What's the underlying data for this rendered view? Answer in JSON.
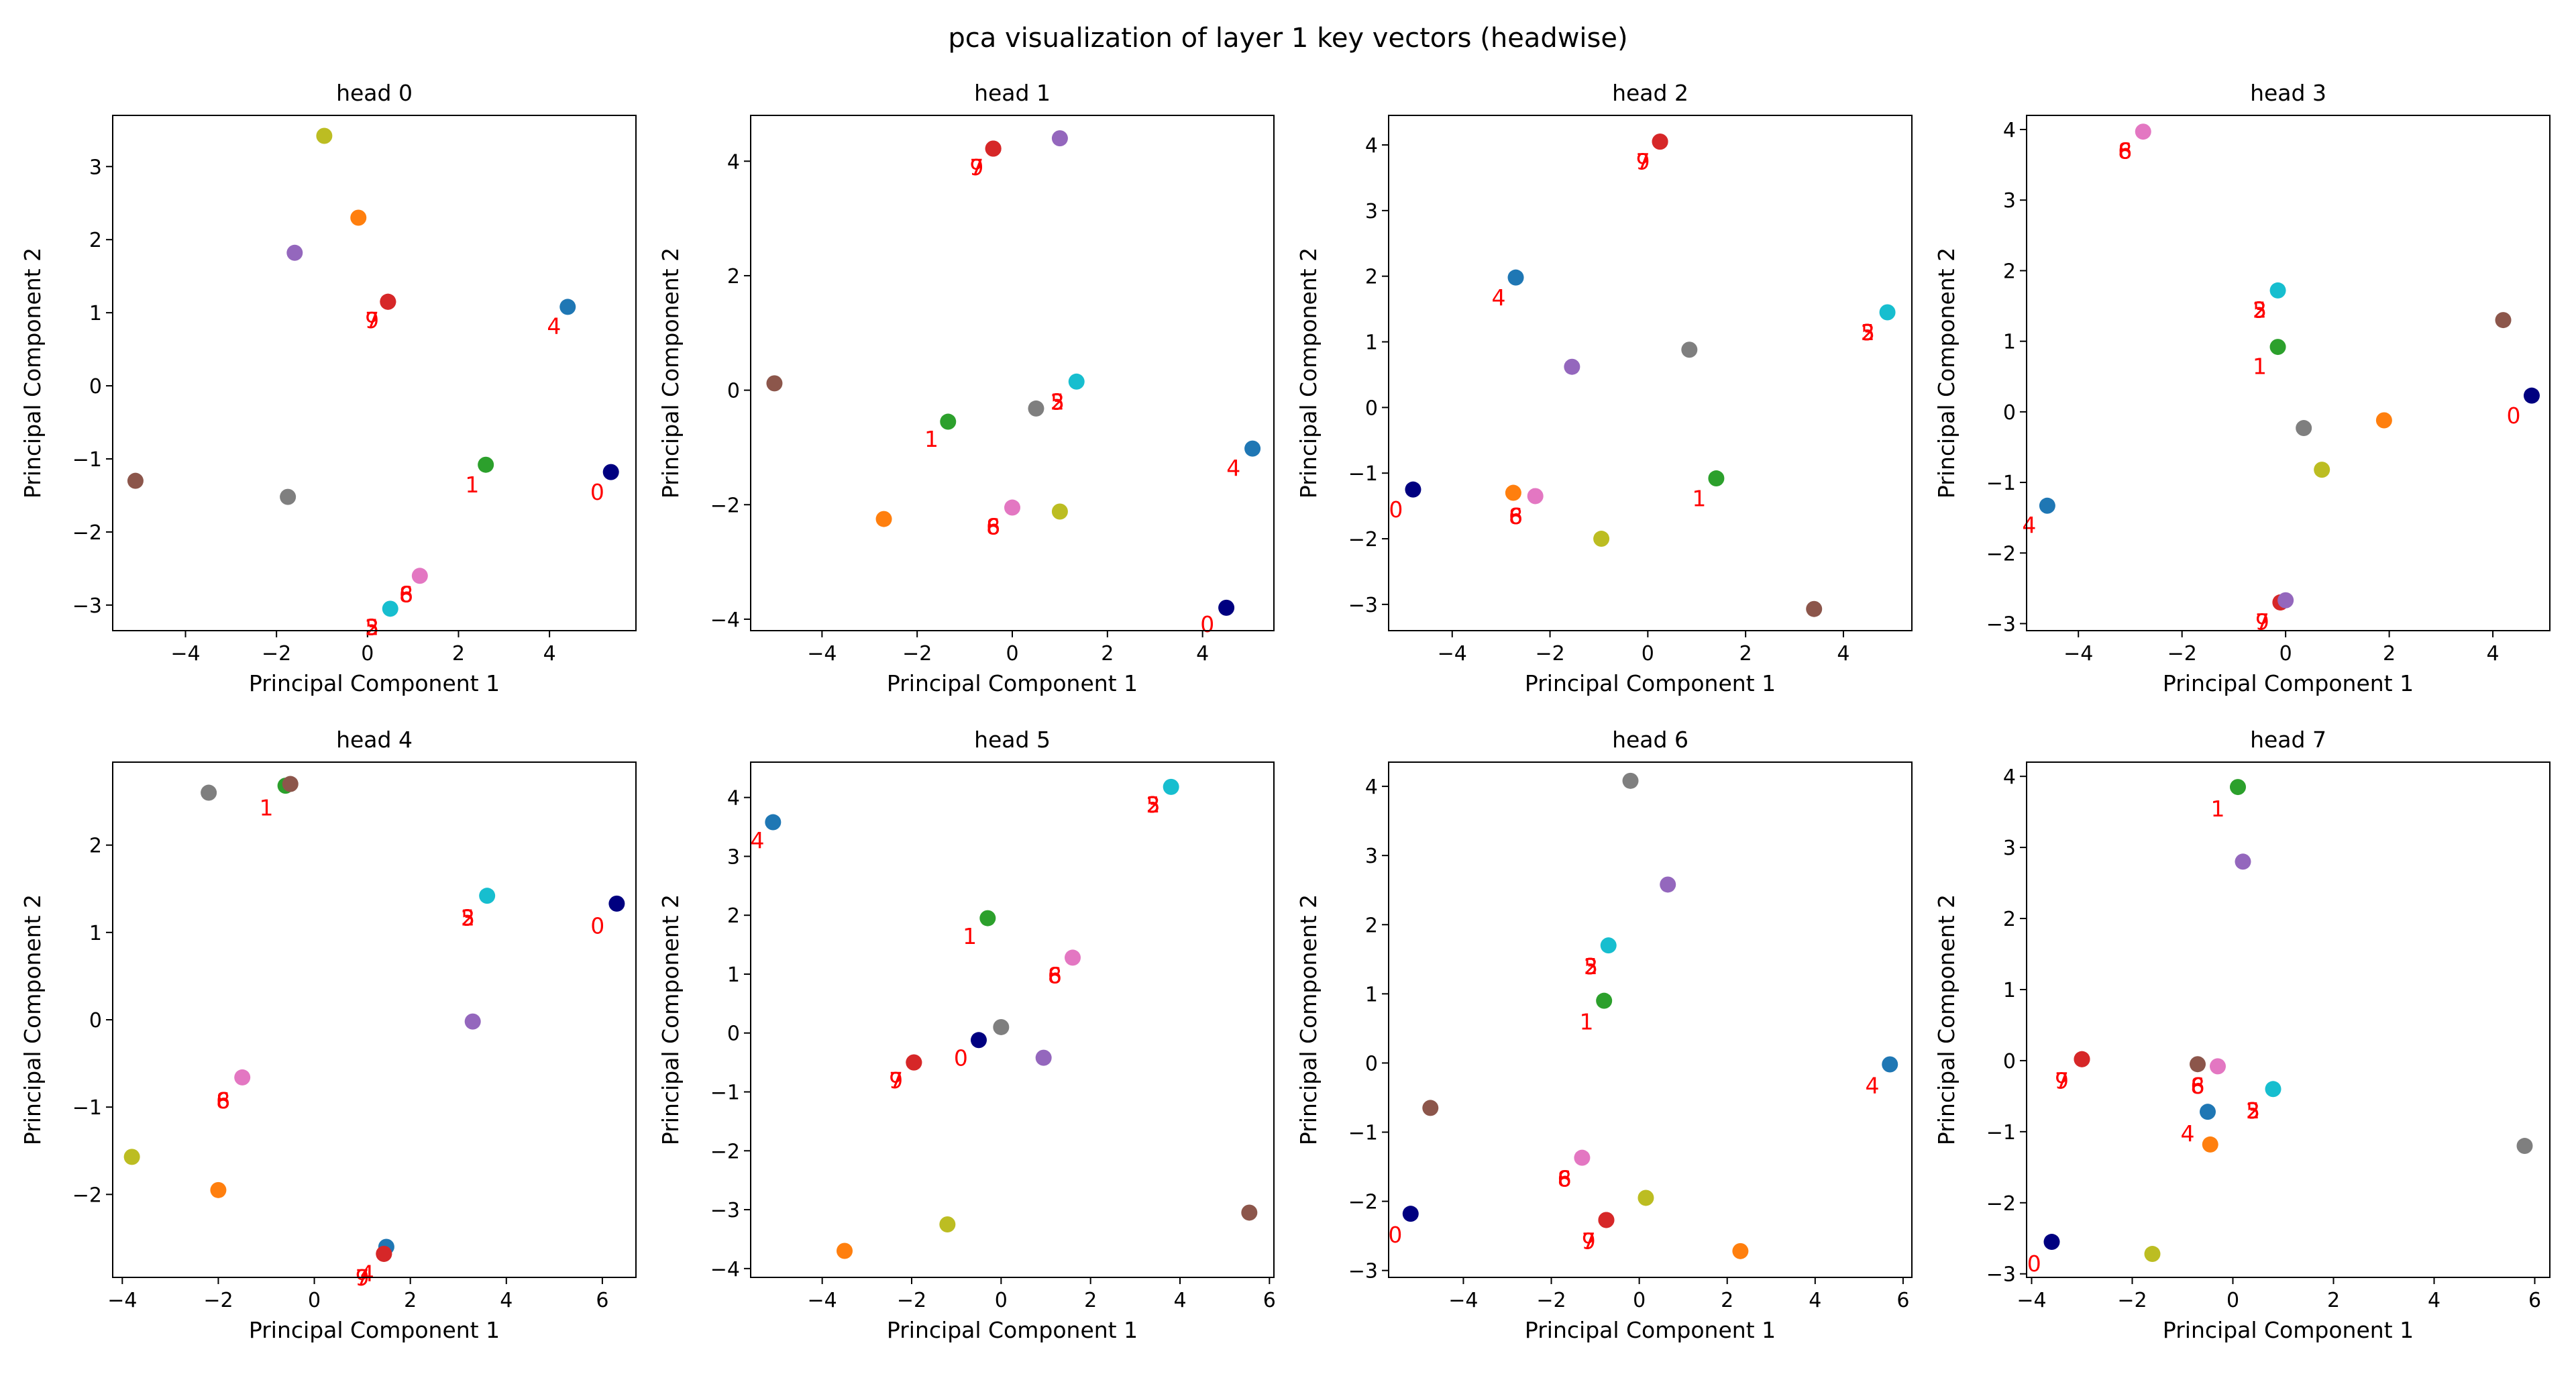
{
  "title": "pca visualization of layer 1 key vectors (headwise)",
  "colors": [
    "#000080",
    "#2ca02c",
    "#17becf",
    "#d62728",
    "#1f77b4",
    "#ff7f0e",
    "#e377c2",
    "#d62728",
    "#8c564b",
    "#9467bd",
    "#7f7f7f",
    "#bcbd22"
  ],
  "chart_data": [
    {
      "type": "scatter",
      "title": "head 0",
      "xlabel": "Principal Component 1",
      "ylabel": "Principal Component 2",
      "xlim": [
        -5.6,
        5.9
      ],
      "ylim": [
        -3.35,
        3.7
      ],
      "xticks": [
        -4,
        -2,
        0,
        2,
        4
      ],
      "yticks": [
        -3,
        -2,
        -1,
        0,
        1,
        2,
        3
      ],
      "points": [
        [
          5.35,
          -1.18
        ],
        [
          2.6,
          -1.08
        ],
        [
          0.5,
          -3.05
        ],
        [
          0.45,
          1.15
        ],
        [
          4.4,
          1.08
        ],
        [
          -0.2,
          2.3
        ],
        [
          1.15,
          -2.6
        ],
        [
          0.45,
          1.15
        ],
        [
          -5.1,
          -1.3
        ],
        [
          -1.6,
          1.82
        ],
        [
          -1.75,
          -1.52
        ],
        [
          -0.95,
          3.42
        ]
      ],
      "labels": [
        {
          "text": "0",
          "x": 5.05,
          "y": -1.45
        },
        {
          "text": "1",
          "x": 2.3,
          "y": -1.35
        },
        {
          "text": "2",
          "x": 0.1,
          "y": -3.3
        },
        {
          "text": "3",
          "x": 0.1,
          "y": -3.3
        },
        {
          "text": "4",
          "x": 4.1,
          "y": 0.82
        },
        {
          "text": "5",
          "x": 0.1,
          "y": -3.3
        },
        {
          "text": "6",
          "x": 0.85,
          "y": -2.85
        },
        {
          "text": "7",
          "x": 0.1,
          "y": 0.9
        },
        {
          "text": "8",
          "x": 0.85,
          "y": -2.85
        },
        {
          "text": "9",
          "x": 0.1,
          "y": 0.9
        }
      ]
    },
    {
      "type": "scatter",
      "title": "head 1",
      "xlabel": "Principal Component 1",
      "ylabel": "Principal Component 2",
      "xlim": [
        -5.5,
        5.5
      ],
      "ylim": [
        -4.2,
        4.8
      ],
      "xticks": [
        -4,
        -2,
        0,
        2,
        4
      ],
      "yticks": [
        -4,
        -2,
        0,
        2,
        4
      ],
      "points": [
        [
          4.5,
          -3.8
        ],
        [
          -1.35,
          -0.55
        ],
        [
          1.35,
          0.15
        ],
        [
          -0.4,
          4.22
        ],
        [
          5.05,
          -1.02
        ],
        [
          -2.7,
          -2.25
        ],
        [
          0.0,
          -2.05
        ],
        [
          -0.4,
          4.22
        ],
        [
          -5.0,
          0.12
        ],
        [
          1.0,
          4.4
        ],
        [
          0.5,
          -0.32
        ],
        [
          1.0,
          -2.12
        ]
      ],
      "labels": [
        {
          "text": "0",
          "x": 4.1,
          "y": -4.08
        },
        {
          "text": "1",
          "x": -1.7,
          "y": -0.85
        },
        {
          "text": "2",
          "x": 0.95,
          "y": -0.2
        },
        {
          "text": "3",
          "x": 0.95,
          "y": -0.2
        },
        {
          "text": "4",
          "x": 4.65,
          "y": -1.35
        },
        {
          "text": "5",
          "x": 0.95,
          "y": -0.2
        },
        {
          "text": "6",
          "x": -0.4,
          "y": -2.38
        },
        {
          "text": "7",
          "x": -0.75,
          "y": 3.9
        },
        {
          "text": "8",
          "x": -0.4,
          "y": -2.38
        },
        {
          "text": "9",
          "x": -0.75,
          "y": 3.9
        }
      ]
    },
    {
      "type": "scatter",
      "title": "head 2",
      "xlabel": "Principal Component 1",
      "ylabel": "Principal Component 2",
      "xlim": [
        -5.3,
        5.4
      ],
      "ylim": [
        -3.4,
        4.45
      ],
      "xticks": [
        -4,
        -2,
        0,
        2,
        4
      ],
      "yticks": [
        -3,
        -2,
        -1,
        0,
        1,
        2,
        3,
        4
      ],
      "points": [
        [
          -4.8,
          -1.25
        ],
        [
          1.4,
          -1.08
        ],
        [
          4.9,
          1.45
        ],
        [
          0.25,
          4.05
        ],
        [
          -2.7,
          1.98
        ],
        [
          -2.75,
          -1.3
        ],
        [
          -2.3,
          -1.35
        ],
        [
          0.25,
          4.05
        ],
        [
          3.4,
          -3.07
        ],
        [
          -1.55,
          0.62
        ],
        [
          0.85,
          0.88
        ],
        [
          -0.95,
          -2.0
        ]
      ],
      "labels": [
        {
          "text": "0",
          "x": -5.15,
          "y": -1.55
        },
        {
          "text": "1",
          "x": 1.05,
          "y": -1.38
        },
        {
          "text": "2",
          "x": 4.5,
          "y": 1.15
        },
        {
          "text": "3",
          "x": 4.5,
          "y": 1.15
        },
        {
          "text": "4",
          "x": -3.05,
          "y": 1.68
        },
        {
          "text": "5",
          "x": 4.5,
          "y": 1.15
        },
        {
          "text": "6",
          "x": -2.7,
          "y": -1.65
        },
        {
          "text": "7",
          "x": -0.1,
          "y": 3.75
        },
        {
          "text": "8",
          "x": -2.7,
          "y": -1.65
        },
        {
          "text": "9",
          "x": -0.1,
          "y": 3.75
        }
      ]
    },
    {
      "type": "scatter",
      "title": "head 3",
      "xlabel": "Principal Component 1",
      "ylabel": "Principal Component 2",
      "xlim": [
        -5.0,
        5.1
      ],
      "ylim": [
        -3.1,
        4.2
      ],
      "xticks": [
        -4,
        -2,
        0,
        2,
        4
      ],
      "yticks": [
        -3,
        -2,
        -1,
        0,
        1,
        2,
        3,
        4
      ],
      "points": [
        [
          4.75,
          0.23
        ],
        [
          -0.15,
          0.92
        ],
        [
          -0.15,
          1.72
        ],
        [
          -0.1,
          -2.7
        ],
        [
          -4.6,
          -1.33
        ],
        [
          1.9,
          -0.12
        ],
        [
          -2.75,
          3.97
        ],
        [
          -0.1,
          -2.7
        ],
        [
          4.2,
          1.3
        ],
        [
          0.0,
          -2.67
        ],
        [
          0.35,
          -0.23
        ],
        [
          0.7,
          -0.82
        ]
      ],
      "labels": [
        {
          "text": "0",
          "x": 4.4,
          "y": -0.05
        },
        {
          "text": "1",
          "x": -0.5,
          "y": 0.65
        },
        {
          "text": "2",
          "x": -0.5,
          "y": 1.45
        },
        {
          "text": "3",
          "x": -0.5,
          "y": 1.45
        },
        {
          "text": "4",
          "x": -4.95,
          "y": -1.6
        },
        {
          "text": "5",
          "x": -0.5,
          "y": 1.45
        },
        {
          "text": "6",
          "x": -3.1,
          "y": 3.7
        },
        {
          "text": "7",
          "x": -0.45,
          "y": -2.97
        },
        {
          "text": "8",
          "x": -3.1,
          "y": 3.7
        },
        {
          "text": "9",
          "x": -0.45,
          "y": -2.97
        }
      ]
    },
    {
      "type": "scatter",
      "title": "head 4",
      "xlabel": "Principal Component 1",
      "ylabel": "Principal Component 2",
      "xlim": [
        -4.2,
        6.7
      ],
      "ylim": [
        -2.95,
        2.95
      ],
      "xticks": [
        -4,
        -2,
        0,
        2,
        4,
        6
      ],
      "yticks": [
        -2,
        -1,
        0,
        1,
        2
      ],
      "points": [
        [
          6.3,
          1.33
        ],
        [
          -0.6,
          2.68
        ],
        [
          3.6,
          1.42
        ],
        [
          1.45,
          -2.68
        ],
        [
          1.5,
          -2.6
        ],
        [
          -2.0,
          -1.95
        ],
        [
          -1.5,
          -0.66
        ],
        [
          1.45,
          -2.68
        ],
        [
          -0.5,
          2.7
        ],
        [
          3.3,
          -0.02
        ],
        [
          -2.2,
          2.6
        ],
        [
          -3.8,
          -1.57
        ]
      ],
      "labels": [
        {
          "text": "0",
          "x": 5.9,
          "y": 1.08
        },
        {
          "text": "1",
          "x": -1.0,
          "y": 2.43
        },
        {
          "text": "2",
          "x": 3.2,
          "y": 1.17
        },
        {
          "text": "3",
          "x": 3.2,
          "y": 1.17
        },
        {
          "text": "4",
          "x": 1.1,
          "y": -2.9
        },
        {
          "text": "5",
          "x": 3.2,
          "y": 1.17
        },
        {
          "text": "6",
          "x": -1.9,
          "y": -0.92
        },
        {
          "text": "7",
          "x": 1.0,
          "y": -2.95
        },
        {
          "text": "8",
          "x": -1.9,
          "y": -0.92
        },
        {
          "text": "9",
          "x": 1.0,
          "y": -2.95
        }
      ]
    },
    {
      "type": "scatter",
      "title": "head 5",
      "xlabel": "Principal Component 1",
      "ylabel": "Principal Component 2",
      "xlim": [
        -5.6,
        6.1
      ],
      "ylim": [
        -4.15,
        4.6
      ],
      "xticks": [
        -4,
        -2,
        0,
        2,
        4,
        6
      ],
      "yticks": [
        -4,
        -3,
        -2,
        -1,
        0,
        1,
        2,
        3,
        4
      ],
      "points": [
        [
          -0.5,
          -0.12
        ],
        [
          -0.3,
          1.95
        ],
        [
          3.8,
          4.18
        ],
        [
          -1.95,
          -0.5
        ],
        [
          -5.1,
          3.58
        ],
        [
          -3.5,
          -3.7
        ],
        [
          1.6,
          1.28
        ],
        [
          -1.95,
          -0.5
        ],
        [
          5.55,
          -3.05
        ],
        [
          0.95,
          -0.42
        ],
        [
          0.0,
          0.1
        ],
        [
          -1.2,
          -3.25
        ]
      ],
      "labels": [
        {
          "text": "0",
          "x": -0.9,
          "y": -0.42
        },
        {
          "text": "1",
          "x": -0.7,
          "y": 1.65
        },
        {
          "text": "2",
          "x": 3.4,
          "y": 3.88
        },
        {
          "text": "3",
          "x": 3.4,
          "y": 3.88
        },
        {
          "text": "4",
          "x": -5.45,
          "y": 3.28
        },
        {
          "text": "5",
          "x": 3.4,
          "y": 3.88
        },
        {
          "text": "6",
          "x": 1.2,
          "y": 0.98
        },
        {
          "text": "7",
          "x": -2.35,
          "y": -0.8
        },
        {
          "text": "8",
          "x": 1.2,
          "y": 0.98
        },
        {
          "text": "9",
          "x": -2.35,
          "y": -0.8
        }
      ]
    },
    {
      "type": "scatter",
      "title": "head 6",
      "xlabel": "Principal Component 1",
      "ylabel": "Principal Component 2",
      "xlim": [
        -5.7,
        6.2
      ],
      "ylim": [
        -3.1,
        4.35
      ],
      "xticks": [
        -4,
        -2,
        0,
        2,
        4,
        6
      ],
      "yticks": [
        -3,
        -2,
        -1,
        0,
        1,
        2,
        3,
        4
      ],
      "points": [
        [
          -5.2,
          -2.18
        ],
        [
          -0.8,
          0.9
        ],
        [
          -0.7,
          1.7
        ],
        [
          -0.75,
          -2.27
        ],
        [
          5.7,
          -0.02
        ],
        [
          2.3,
          -2.72
        ],
        [
          -1.3,
          -1.37
        ],
        [
          -0.75,
          -2.27
        ],
        [
          -4.75,
          -0.65
        ],
        [
          0.65,
          2.58
        ],
        [
          -0.2,
          4.08
        ],
        [
          0.15,
          -1.95
        ]
      ],
      "labels": [
        {
          "text": "0",
          "x": -5.55,
          "y": -2.48
        },
        {
          "text": "1",
          "x": -1.2,
          "y": 0.6
        },
        {
          "text": "2",
          "x": -1.1,
          "y": 1.4
        },
        {
          "text": "3",
          "x": -1.1,
          "y": 1.4
        },
        {
          "text": "4",
          "x": 5.3,
          "y": -0.32
        },
        {
          "text": "5",
          "x": -1.1,
          "y": 1.4
        },
        {
          "text": "6",
          "x": -1.7,
          "y": -1.67
        },
        {
          "text": "7",
          "x": -1.15,
          "y": -2.57
        },
        {
          "text": "8",
          "x": -1.7,
          "y": -1.67
        },
        {
          "text": "9",
          "x": -1.15,
          "y": -2.57
        }
      ]
    },
    {
      "type": "scatter",
      "title": "head 7",
      "xlabel": "Principal Component 1",
      "ylabel": "Principal Component 2",
      "xlim": [
        -4.1,
        6.3
      ],
      "ylim": [
        -3.05,
        4.2
      ],
      "xticks": [
        -4,
        -2,
        0,
        2,
        4,
        6
      ],
      "yticks": [
        -3,
        -2,
        -1,
        0,
        1,
        2,
        3,
        4
      ],
      "points": [
        [
          -3.6,
          -2.55
        ],
        [
          0.1,
          3.85
        ],
        [
          0.8,
          -0.4
        ],
        [
          -3.0,
          0.02
        ],
        [
          -0.5,
          -0.72
        ],
        [
          -0.45,
          -1.18
        ],
        [
          -0.3,
          -0.08
        ],
        [
          -3.0,
          0.02
        ],
        [
          -0.7,
          -0.05
        ],
        [
          0.2,
          2.8
        ],
        [
          5.8,
          -1.2
        ],
        [
          -1.6,
          -2.72
        ]
      ],
      "labels": [
        {
          "text": "0",
          "x": -3.95,
          "y": -2.85
        },
        {
          "text": "1",
          "x": -0.3,
          "y": 3.55
        },
        {
          "text": "2",
          "x": 0.4,
          "y": -0.7
        },
        {
          "text": "3",
          "x": 0.4,
          "y": -0.7
        },
        {
          "text": "4",
          "x": -0.9,
          "y": -1.02
        },
        {
          "text": "5",
          "x": 0.4,
          "y": -0.7
        },
        {
          "text": "6",
          "x": -0.7,
          "y": -0.35
        },
        {
          "text": "7",
          "x": -3.4,
          "y": -0.28
        },
        {
          "text": "8",
          "x": -0.7,
          "y": -0.35
        },
        {
          "text": "9",
          "x": -3.4,
          "y": -0.28
        }
      ]
    }
  ]
}
